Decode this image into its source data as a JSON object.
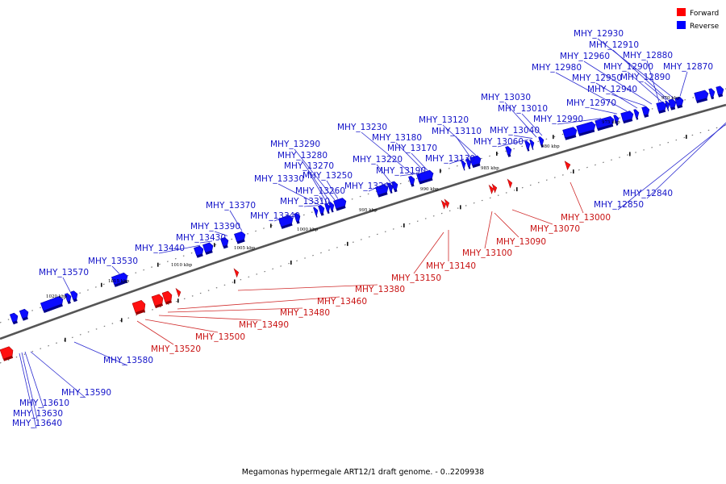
{
  "caption": "Megamonas hypermegale ART12/1 draft genome. - 0..2209938",
  "legend": [
    {
      "label": "Forward",
      "color": "#ff0000"
    },
    {
      "label": "Reverse",
      "color": "#0000ff"
    }
  ],
  "kbp_marks": [
    "970 kbp",
    "975 kbp",
    "980 kbp",
    "985 kbp",
    "990 kbp",
    "995 kbp",
    "1000 kbp",
    "1005 kbp",
    "1010 kbp",
    "1015 kbp",
    "1020 kbp"
  ],
  "reverse_genes": [
    "MHY_12930",
    "MHY_12910",
    "MHY_12960",
    "MHY_12880",
    "MHY_12980",
    "MHY_12900",
    "MHY_12870",
    "MHY_12950",
    "MHY_12890",
    "MHY_12940",
    "MHY_13030",
    "MHY_12970",
    "MHY_13010",
    "MHY_13120",
    "MHY_12990",
    "MHY_13040",
    "MHY_13230",
    "MHY_13110",
    "MHY_13180",
    "MHY_13060",
    "MHY_13290",
    "MHY_13170",
    "MHY_13280",
    "MHY_13220",
    "MHY_13130",
    "MHY_13270",
    "MHY_13190",
    "MHY_13250",
    "MHY_13330",
    "MHY_13240",
    "MHY_13260",
    "MHY_13310",
    "MHY_13370",
    "MHY_13340",
    "MHY_13390",
    "MHY_13430",
    "MHY_13440",
    "MHY_13530",
    "MHY_13570",
    "MHY_12840",
    "MHY_12850",
    "MHY_13580",
    "MHY_13590",
    "MHY_13610",
    "MHY_13630",
    "MHY_13640"
  ],
  "forward_genes": [
    "MHY_13000",
    "MHY_13070",
    "MHY_13090",
    "MHY_13100",
    "MHY_13140",
    "MHY_13150",
    "MHY_13380",
    "MHY_13460",
    "MHY_13480",
    "MHY_13490",
    "MHY_13500",
    "MHY_13520"
  ]
}
